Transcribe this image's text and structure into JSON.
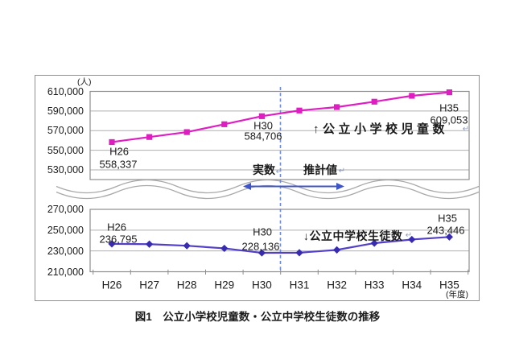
{
  "labels": {
    "return_mark": "↵"
  },
  "colors": {
    "elementary_series": "#DF1EC2",
    "junior_series_line": "#5240C8",
    "junior_series_marker": "#372BB0",
    "divider_dashed_line": "#6D89DC",
    "range_arrow": "#3D55C8",
    "gridline": "#AFAFAF",
    "plot_frame": "#8E8E8E",
    "wave_break": "#A9A9A9"
  },
  "chart_data": {
    "type": "line",
    "title": "図1　公立小学校児童数・公立中学校生徒数の推移",
    "y_unit": "(人)",
    "x_axis_note": "(年度)",
    "axis_break": true,
    "grid": true,
    "categories": [
      "H26",
      "H27",
      "H28",
      "H29",
      "H30",
      "H31",
      "H32",
      "H33",
      "H34",
      "H35"
    ],
    "divider": {
      "between": [
        "H30",
        "H31"
      ],
      "left_label": "実数",
      "right_label": "推計値"
    },
    "top_axis": {
      "ylim": [
        530000,
        610000
      ],
      "ticks": [
        "610,000",
        "590,000",
        "570,000",
        "550,000",
        "530,000"
      ]
    },
    "bottom_axis": {
      "ylim": [
        210000,
        270000
      ],
      "ticks": [
        "270,000",
        "250,000",
        "230,000",
        "210,000"
      ]
    },
    "series": [
      {
        "name": "公立小学校児童数",
        "display_label": "↑公立小学校児童数",
        "axis": "top",
        "color": "#DF1EC2",
        "marker": "square",
        "values": [
          558337,
          563500,
          568500,
          576500,
          584706,
          590500,
          594000,
          599500,
          605500,
          609053
        ],
        "point_labels": {
          "H26": "558,337",
          "H30": "584,706",
          "H35": "609,053"
        }
      },
      {
        "name": "公立中学校生徒数",
        "display_label": "↓公立中学校生徒数",
        "axis": "bottom",
        "color": "#5240C8",
        "marker_color": "#372BB0",
        "marker": "diamond",
        "values": [
          236795,
          236500,
          235000,
          232500,
          228136,
          228300,
          231000,
          237500,
          241000,
          243446
        ],
        "point_labels": {
          "H26": "236,795",
          "H30": "228,136",
          "H35": "243,446"
        }
      }
    ]
  }
}
